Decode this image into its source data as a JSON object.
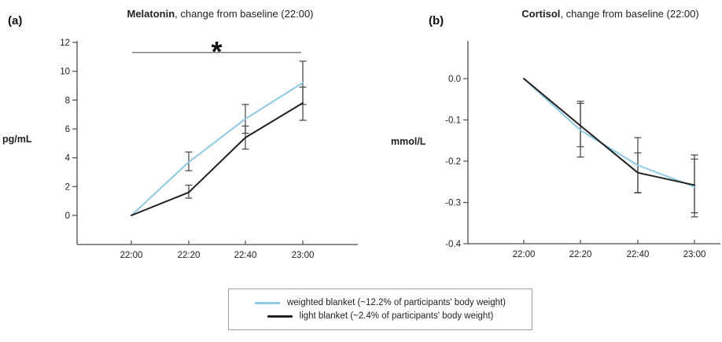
{
  "figure": {
    "panel_a_label": "(a)",
    "panel_b_label": "(b)"
  },
  "colors": {
    "weighted_blanket": "#8ec9e6",
    "light_blanket": "#212121",
    "axis": "#4d4d4d",
    "error_bar": "#4f4f4f",
    "significance_line": "#595959"
  },
  "legend": {
    "items": [
      {
        "name": "weighted-blanket",
        "color": "#8ec9e6",
        "label": "weighted blanket (~12.2% of participants' body weight)"
      },
      {
        "name": "light-blanket",
        "color": "#212121",
        "label": "light blanket (~2.4% of participants' body weight)"
      }
    ]
  },
  "chart_data": [
    {
      "id": "melatonin",
      "type": "line",
      "title_bold": "Melatonin",
      "title_rest": ", change from baseline (22:00)",
      "ylabel": "pg/mL",
      "xlabel": "",
      "categories": [
        "22:00",
        "22:20",
        "22:40",
        "23:00"
      ],
      "yticks": [
        {
          "value": 0,
          "label": "0"
        },
        {
          "value": 2,
          "label": "2"
        },
        {
          "value": 4,
          "label": "4"
        },
        {
          "value": 6,
          "label": "6"
        },
        {
          "value": 8,
          "label": "8"
        },
        {
          "value": 10,
          "label": "10"
        },
        {
          "value": 12,
          "label": "12"
        }
      ],
      "ylim": [
        -2.1,
        12.1
      ],
      "grid": false,
      "series": [
        {
          "name": "weighted blanket (~12.2% of participants' body weight)",
          "color": "#8ec9e6",
          "values": [
            0,
            3.7,
            6.7,
            9.2
          ],
          "err_low": [
            null,
            3.1,
            5.7,
            7.7
          ],
          "err_high": [
            null,
            4.4,
            7.7,
            10.7
          ]
        },
        {
          "name": "light blanket (~2.4% of participants' body weight)",
          "color": "#212121",
          "values": [
            0,
            1.6,
            5.4,
            7.8
          ],
          "err_low": [
            null,
            1.2,
            4.6,
            6.6
          ],
          "err_high": [
            null,
            2.1,
            6.2,
            8.9
          ]
        }
      ],
      "significance": {
        "from_index": 0,
        "to_index": 3,
        "y": 11.3,
        "label": "*"
      }
    },
    {
      "id": "cortisol",
      "type": "line",
      "title_bold": "Cortisol",
      "title_rest": ", change from baseline (22:00)",
      "ylabel": "mmol/L",
      "xlabel": "",
      "categories": [
        "22:00",
        "22:20",
        "22:40",
        "23:00"
      ],
      "yticks": [
        {
          "value": 0,
          "label": "0.0"
        },
        {
          "value": -0.1,
          "label": "-0.1"
        },
        {
          "value": -0.2,
          "label": "-0.2"
        },
        {
          "value": -0.3,
          "label": "-0.3"
        },
        {
          "value": -0.4,
          "label": "-0.4"
        }
      ],
      "ylim": [
        -0.4,
        0.09
      ],
      "grid": false,
      "series": [
        {
          "name": "weighted blanket (~12.2% of participants' body weight)",
          "color": "#8ec9e6",
          "values": [
            0,
            -0.125,
            -0.21,
            -0.262
          ],
          "err_low": [
            null,
            -0.19,
            -0.277,
            -0.335
          ],
          "err_high": [
            null,
            -0.06,
            -0.143,
            -0.185
          ]
        },
        {
          "name": "light blanket (~2.4% of participants' body weight)",
          "color": "#212121",
          "values": [
            0,
            -0.114,
            -0.228,
            -0.258
          ],
          "err_low": [
            null,
            -0.165,
            -0.276,
            -0.325
          ],
          "err_high": [
            null,
            -0.055,
            -0.18,
            -0.195
          ]
        }
      ],
      "significance": null
    }
  ]
}
